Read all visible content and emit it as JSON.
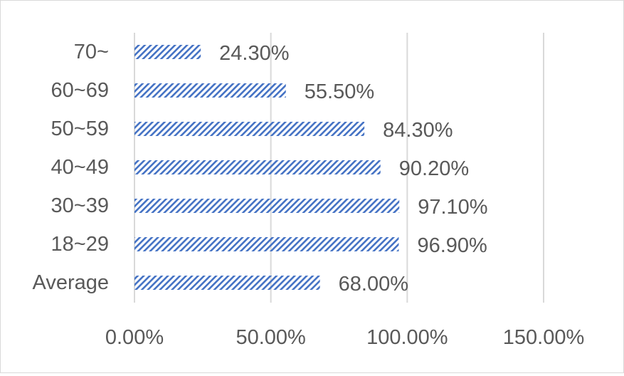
{
  "chart_data": {
    "type": "bar",
    "orientation": "horizontal",
    "title": "",
    "xlabel": "",
    "ylabel": "",
    "categories": [
      "70~",
      "60~69",
      "50~59",
      "40~49",
      "30~39",
      "18~29",
      "Average"
    ],
    "values": [
      24.3,
      55.5,
      84.3,
      90.2,
      97.1,
      96.9,
      68.0
    ],
    "data_labels": [
      "24.30%",
      "55.50%",
      "84.30%",
      "90.20%",
      "97.10%",
      "96.90%",
      "68.00%"
    ],
    "xlim": [
      0,
      150
    ],
    "x_ticks": [
      0,
      50,
      100,
      150
    ],
    "x_tick_labels": [
      "0.00%",
      "50.00%",
      "100.00%",
      "150.00%"
    ],
    "grid": "vertical",
    "legend": "none",
    "bar_pattern": "diagonal-hatch",
    "colors": {
      "bar": "#4472c4",
      "grid": "#d9d9d9",
      "text": "#595959",
      "border": "#d9d9d9"
    }
  }
}
